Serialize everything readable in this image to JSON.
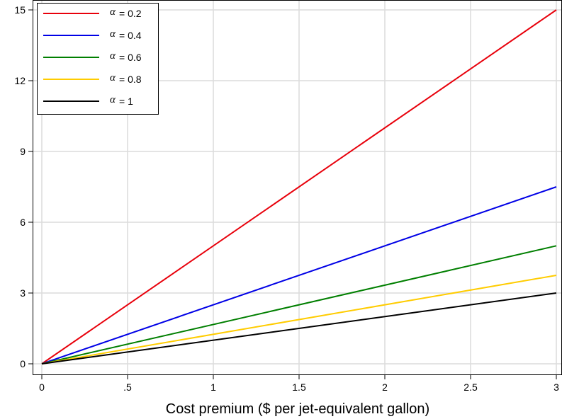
{
  "chart_data": {
    "type": "line",
    "title": "",
    "xlabel": "Cost premium ($ per jet-equivalent gallon)",
    "ylabel": "",
    "xlim": [
      0,
      3
    ],
    "ylim": [
      0,
      15
    ],
    "x_ticks": [
      0,
      0.5,
      1,
      1.5,
      2,
      2.5,
      3
    ],
    "x_tick_labels": [
      "0",
      ".5",
      "1",
      "1.5",
      "2",
      "2.5",
      "3"
    ],
    "y_ticks": [
      0,
      3,
      6,
      9,
      12,
      15
    ],
    "y_tick_labels": [
      "0",
      "3",
      "6",
      "9",
      "12",
      "15"
    ],
    "grid": true,
    "legend_position": "top-left",
    "series": [
      {
        "name": "α = 0.2",
        "symbol": "α",
        "value_text": "= 0.2",
        "color": "#e8000b",
        "x": [
          0,
          3
        ],
        "y": [
          0,
          15
        ]
      },
      {
        "name": "α = 0.4",
        "symbol": "α",
        "value_text": "= 0.4",
        "color": "#0000e6",
        "x": [
          0,
          3
        ],
        "y": [
          0,
          7.5
        ]
      },
      {
        "name": "α = 0.6",
        "symbol": "α",
        "value_text": "= 0.6",
        "color": "#007f00",
        "x": [
          0,
          3
        ],
        "y": [
          0,
          5
        ]
      },
      {
        "name": "α = 0.8",
        "symbol": "α",
        "value_text": "= 0.8",
        "color": "#ffcc00",
        "x": [
          0,
          3
        ],
        "y": [
          0,
          3.75
        ]
      },
      {
        "name": "α = 1",
        "symbol": "α",
        "value_text": "= 1",
        "color": "#000000",
        "x": [
          0,
          3
        ],
        "y": [
          0,
          3
        ]
      }
    ]
  }
}
